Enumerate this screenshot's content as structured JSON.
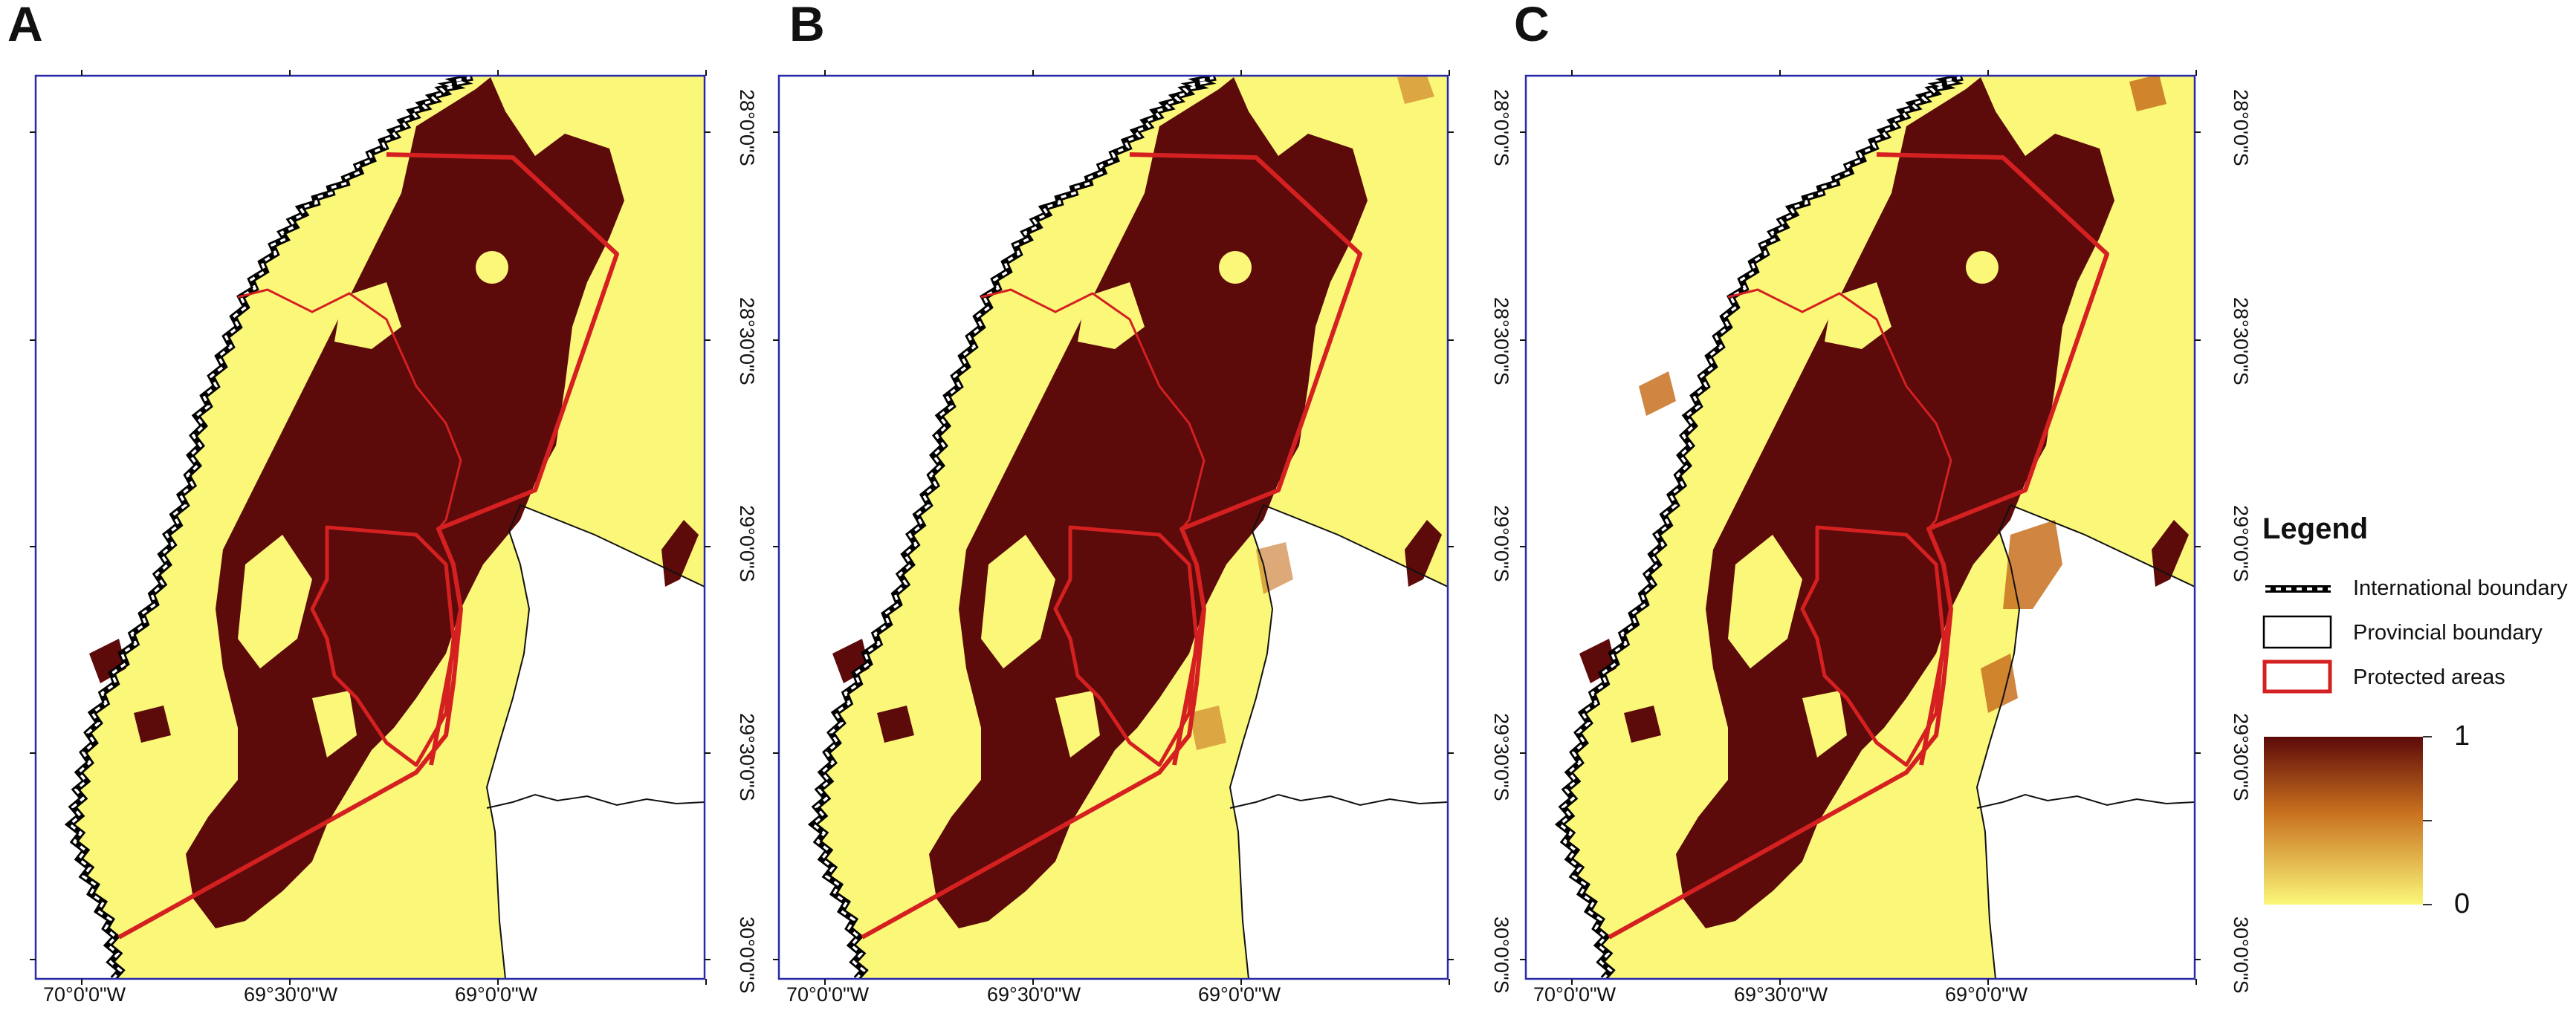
{
  "panels": [
    {
      "letter": "A",
      "variant": "a"
    },
    {
      "letter": "B",
      "variant": "b"
    },
    {
      "letter": "C",
      "variant": "c"
    }
  ],
  "axes": {
    "lat_labels": [
      "28°0'0\"S",
      "28°30'0\"S",
      "29°0'0\"S",
      "29°30'0\"S",
      "30°0'0\"S"
    ],
    "lon_labels": [
      "70°0'0\"W",
      "69°30'0\"W",
      "69°0'0\"W"
    ]
  },
  "legend": {
    "title": "Legend",
    "items": [
      {
        "label": "International boundary",
        "symbol": "international-boundary"
      },
      {
        "label": "Provincial boundary",
        "symbol": "provincial-boundary"
      },
      {
        "label": "Protected areas",
        "symbol": "protected-area"
      }
    ],
    "scale": {
      "max_label": "1",
      "min_label": "0"
    }
  },
  "colors": {
    "high": "#5c0a0a",
    "mid": "#c8701e",
    "low": "#fbf779",
    "protected": "#d42020",
    "frame": "#2a2aa8"
  }
}
